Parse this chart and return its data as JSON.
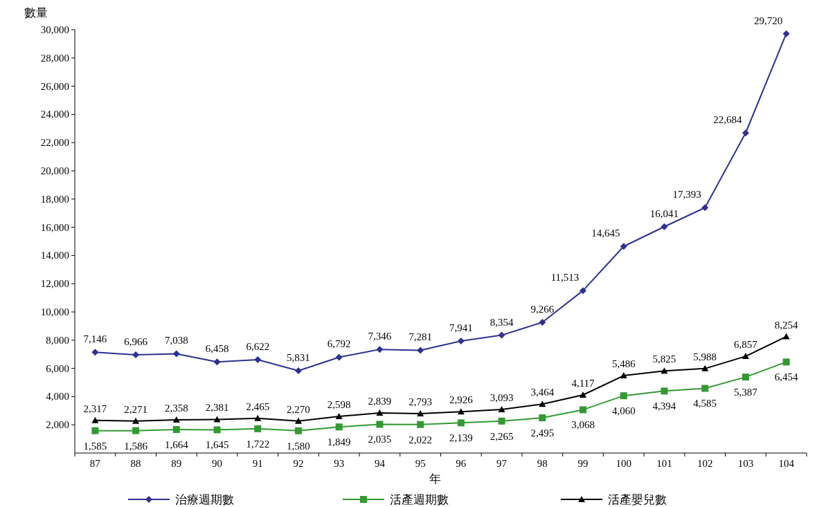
{
  "chart_data": {
    "type": "line",
    "ylabel": "數量",
    "xlabel": "年",
    "categories": [
      "87",
      "88",
      "89",
      "90",
      "91",
      "92",
      "93",
      "94",
      "95",
      "96",
      "97",
      "98",
      "99",
      "100",
      "101",
      "102",
      "103",
      "104"
    ],
    "series": [
      {
        "name": "治療週期數",
        "color": "#2e3192",
        "marker": "diamond",
        "values": [
          7146,
          6966,
          7038,
          6458,
          6622,
          5831,
          6792,
          7346,
          7281,
          7941,
          8354,
          9266,
          11513,
          14645,
          16041,
          17393,
          22684,
          29720
        ],
        "value_labels": [
          "7,146",
          "6,966",
          "7,038",
          "6,458",
          "6,622",
          "5,831",
          "6,792",
          "7,346",
          "7,281",
          "7,941",
          "8,354",
          "9,266",
          "11,513",
          "14,645",
          "16,041",
          "17,393",
          "22,684",
          "29,720"
        ]
      },
      {
        "name": "活產週期數",
        "color": "#339933",
        "marker": "square",
        "values": [
          1585,
          1586,
          1664,
          1645,
          1722,
          1580,
          1849,
          2035,
          2022,
          2139,
          2265,
          2495,
          3068,
          4060,
          4394,
          4585,
          5387,
          6454
        ],
        "value_labels": [
          "1,585",
          "1,586",
          "1,664",
          "1,645",
          "1,722",
          "1,580",
          "1,849",
          "2,035",
          "2,022",
          "2,139",
          "2,265",
          "2,495",
          "3,068",
          "4,060",
          "4,394",
          "4,585",
          "5,387",
          "6,454"
        ]
      },
      {
        "name": "活產嬰兒數",
        "color": "#000000",
        "marker": "triangle",
        "values": [
          2317,
          2271,
          2358,
          2381,
          2465,
          2270,
          2598,
          2839,
          2793,
          2926,
          3093,
          3464,
          4117,
          5486,
          5825,
          5988,
          6857,
          8254
        ],
        "value_labels": [
          "2,317",
          "2,271",
          "2,358",
          "2,381",
          "2,465",
          "2,270",
          "2,598",
          "2,839",
          "2,793",
          "2,926",
          "3,093",
          "3,464",
          "4,117",
          "5,486",
          "5,825",
          "5,988",
          "6,857",
          "8,254"
        ]
      }
    ],
    "ylim": [
      0,
      30000
    ],
    "yticks": [
      {
        "value": 2000,
        "label": "2,000"
      },
      {
        "value": 4000,
        "label": "4,000"
      },
      {
        "value": 6000,
        "label": "6,000"
      },
      {
        "value": 8000,
        "label": "8,000"
      },
      {
        "value": 10000,
        "label": "10,000"
      },
      {
        "value": 12000,
        "label": "12,000"
      },
      {
        "value": 14000,
        "label": "14,000"
      },
      {
        "value": 16000,
        "label": "16,000"
      },
      {
        "value": 18000,
        "label": "18,000"
      },
      {
        "value": 20000,
        "label": "20,000"
      },
      {
        "value": 22000,
        "label": "22,000"
      },
      {
        "value": 24000,
        "label": "24,000"
      },
      {
        "value": 26000,
        "label": "26,000"
      },
      {
        "value": 28000,
        "label": "28,000"
      },
      {
        "value": 30000,
        "label": "30,000"
      }
    ],
    "legend": "bottom",
    "grid": false,
    "line_style": "solid"
  }
}
